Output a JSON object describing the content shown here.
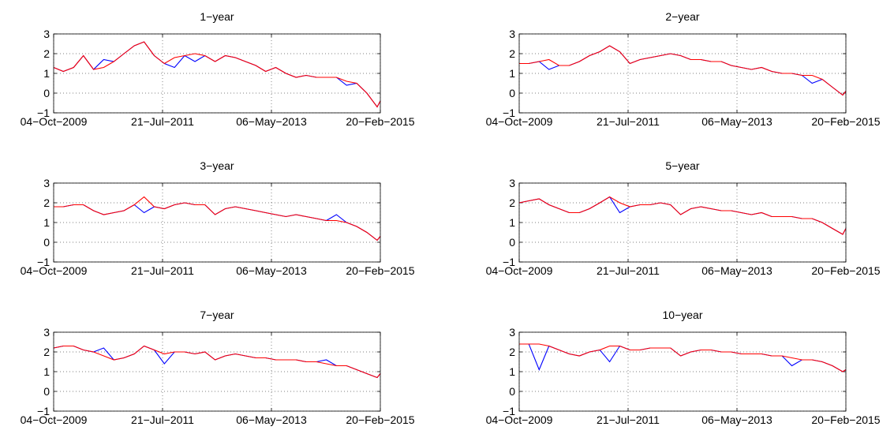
{
  "chart_data": [
    {
      "type": "line",
      "title": "1−year",
      "x": [
        "2009-10-04",
        "2009-12-01",
        "2010-02-01",
        "2010-04-01",
        "2010-06-01",
        "2010-08-01",
        "2010-10-01",
        "2010-12-01",
        "2011-02-01",
        "2011-04-01",
        "2011-06-01",
        "2011-08-01",
        "2011-10-01",
        "2011-12-01",
        "2012-02-01",
        "2012-04-01",
        "2012-06-01",
        "2012-08-01",
        "2012-10-01",
        "2012-12-01",
        "2013-02-01",
        "2013-04-01",
        "2013-06-01",
        "2013-08-01",
        "2013-10-01",
        "2013-12-01",
        "2014-02-01",
        "2014-04-01",
        "2014-06-01",
        "2014-08-01",
        "2014-10-01",
        "2014-12-01",
        "2015-02-01",
        "2015-02-20"
      ],
      "series": [
        {
          "color": "#0000ff",
          "values": [
            1.3,
            1.1,
            1.3,
            1.9,
            1.2,
            1.7,
            1.6,
            2.0,
            2.4,
            2.6,
            1.9,
            1.5,
            1.3,
            1.9,
            1.6,
            1.9,
            1.6,
            1.9,
            1.8,
            1.6,
            1.4,
            1.1,
            1.3,
            1.0,
            0.8,
            0.9,
            0.8,
            0.8,
            0.8,
            0.4,
            0.5,
            0.0,
            -0.7,
            -0.4
          ]
        },
        {
          "color": "#ff0000",
          "values": [
            1.3,
            1.1,
            1.3,
            1.9,
            1.2,
            1.3,
            1.6,
            2.0,
            2.4,
            2.6,
            1.9,
            1.5,
            1.8,
            1.9,
            2.0,
            1.9,
            1.6,
            1.9,
            1.8,
            1.6,
            1.4,
            1.1,
            1.3,
            1.0,
            0.8,
            0.9,
            0.8,
            0.8,
            0.8,
            0.6,
            0.5,
            0.0,
            -0.7,
            -0.4
          ]
        }
      ],
      "xlim": [
        "2009-10-04",
        "2015-02-20"
      ],
      "xticks": [
        {
          "value": "2009-10-04",
          "label": "04−Oct−2009"
        },
        {
          "value": "2011-07-21",
          "label": "21−Jul−2011"
        },
        {
          "value": "2013-05-06",
          "label": "06−May−2013"
        },
        {
          "value": "2015-02-20",
          "label": "20−Feb−2015"
        }
      ],
      "ylim": [
        -1,
        3
      ],
      "yticks": [
        {
          "value": -1,
          "label": "−1"
        },
        0,
        1,
        2,
        3
      ],
      "grid": true
    },
    {
      "type": "line",
      "title": "2−year",
      "x": [
        "2009-10-04",
        "2009-12-01",
        "2010-02-01",
        "2010-04-01",
        "2010-06-01",
        "2010-08-01",
        "2010-10-01",
        "2010-12-01",
        "2011-02-01",
        "2011-04-01",
        "2011-06-01",
        "2011-08-01",
        "2011-10-01",
        "2011-12-01",
        "2012-02-01",
        "2012-04-01",
        "2012-06-01",
        "2012-08-01",
        "2012-10-01",
        "2012-12-01",
        "2013-02-01",
        "2013-04-01",
        "2013-06-01",
        "2013-08-01",
        "2013-10-01",
        "2013-12-01",
        "2014-02-01",
        "2014-04-01",
        "2014-06-01",
        "2014-08-01",
        "2014-10-01",
        "2014-12-01",
        "2015-02-01",
        "2015-02-20"
      ],
      "series": [
        {
          "color": "#0000ff",
          "values": [
            1.5,
            1.5,
            1.6,
            1.2,
            1.4,
            1.4,
            1.6,
            1.9,
            2.1,
            2.4,
            2.1,
            1.5,
            1.7,
            1.8,
            1.9,
            2.0,
            1.9,
            1.7,
            1.7,
            1.6,
            1.6,
            1.4,
            1.3,
            1.2,
            1.3,
            1.1,
            1.0,
            1.0,
            0.9,
            0.5,
            0.7,
            0.3,
            -0.1,
            0.1
          ]
        },
        {
          "color": "#ff0000",
          "values": [
            1.5,
            1.5,
            1.6,
            1.7,
            1.4,
            1.4,
            1.6,
            1.9,
            2.1,
            2.4,
            2.1,
            1.5,
            1.7,
            1.8,
            1.9,
            2.0,
            1.9,
            1.7,
            1.7,
            1.6,
            1.6,
            1.4,
            1.3,
            1.2,
            1.3,
            1.1,
            1.0,
            1.0,
            0.9,
            0.9,
            0.7,
            0.3,
            -0.1,
            0.1
          ]
        }
      ],
      "xlim": [
        "2009-10-04",
        "2015-02-20"
      ],
      "xticks": [
        {
          "value": "2009-10-04",
          "label": "04−Oct−2009"
        },
        {
          "value": "2011-07-21",
          "label": "21−Jul−2011"
        },
        {
          "value": "2013-05-06",
          "label": "06−May−2013"
        },
        {
          "value": "2015-02-20",
          "label": "20−Feb−2015"
        }
      ],
      "ylim": [
        -1,
        3
      ],
      "yticks": [
        {
          "value": -1,
          "label": "−1"
        },
        0,
        1,
        2,
        3
      ],
      "grid": true
    },
    {
      "type": "line",
      "title": "3−year",
      "x": [
        "2009-10-04",
        "2009-12-01",
        "2010-02-01",
        "2010-04-01",
        "2010-06-01",
        "2010-08-01",
        "2010-10-01",
        "2010-12-01",
        "2011-02-01",
        "2011-04-01",
        "2011-06-01",
        "2011-08-01",
        "2011-10-01",
        "2011-12-01",
        "2012-02-01",
        "2012-04-01",
        "2012-06-01",
        "2012-08-01",
        "2012-10-01",
        "2012-12-01",
        "2013-02-01",
        "2013-04-01",
        "2013-06-01",
        "2013-08-01",
        "2013-10-01",
        "2013-12-01",
        "2014-02-01",
        "2014-04-01",
        "2014-06-01",
        "2014-08-01",
        "2014-10-01",
        "2014-12-01",
        "2015-02-01",
        "2015-02-20"
      ],
      "series": [
        {
          "color": "#0000ff",
          "values": [
            1.8,
            1.8,
            1.9,
            1.9,
            1.6,
            1.4,
            1.5,
            1.6,
            1.9,
            1.5,
            1.8,
            1.7,
            1.9,
            2.0,
            1.9,
            1.9,
            1.4,
            1.7,
            1.8,
            1.7,
            1.6,
            1.5,
            1.4,
            1.3,
            1.4,
            1.3,
            1.2,
            1.1,
            1.4,
            1.0,
            0.8,
            0.5,
            0.1,
            0.3
          ]
        },
        {
          "color": "#ff0000",
          "values": [
            1.8,
            1.8,
            1.9,
            1.9,
            1.6,
            1.4,
            1.5,
            1.6,
            1.9,
            2.3,
            1.8,
            1.7,
            1.9,
            2.0,
            1.9,
            1.9,
            1.4,
            1.7,
            1.8,
            1.7,
            1.6,
            1.5,
            1.4,
            1.3,
            1.4,
            1.3,
            1.2,
            1.1,
            1.1,
            1.0,
            0.8,
            0.5,
            0.1,
            0.3
          ]
        }
      ],
      "xlim": [
        "2009-10-04",
        "2015-02-20"
      ],
      "xticks": [
        {
          "value": "2009-10-04",
          "label": "04−Oct−2009"
        },
        {
          "value": "2011-07-21",
          "label": "21−Jul−2011"
        },
        {
          "value": "2013-05-06",
          "label": "06−May−2013"
        },
        {
          "value": "2015-02-20",
          "label": "20−Feb−2015"
        }
      ],
      "ylim": [
        -1,
        3
      ],
      "yticks": [
        {
          "value": -1,
          "label": "−1"
        },
        0,
        1,
        2,
        3
      ],
      "grid": true
    },
    {
      "type": "line",
      "title": "5−year",
      "x": [
        "2009-10-04",
        "2009-12-01",
        "2010-02-01",
        "2010-04-01",
        "2010-06-01",
        "2010-08-01",
        "2010-10-01",
        "2010-12-01",
        "2011-02-01",
        "2011-04-01",
        "2011-06-01",
        "2011-08-01",
        "2011-10-01",
        "2011-12-01",
        "2012-02-01",
        "2012-04-01",
        "2012-06-01",
        "2012-08-01",
        "2012-10-01",
        "2012-12-01",
        "2013-02-01",
        "2013-04-01",
        "2013-06-01",
        "2013-08-01",
        "2013-10-01",
        "2013-12-01",
        "2014-02-01",
        "2014-04-01",
        "2014-06-01",
        "2014-08-01",
        "2014-10-01",
        "2014-12-01",
        "2015-02-01",
        "2015-02-20"
      ],
      "series": [
        {
          "color": "#0000ff",
          "values": [
            2.0,
            2.1,
            2.2,
            1.9,
            1.7,
            1.5,
            1.5,
            1.7,
            2.0,
            2.3,
            1.5,
            1.8,
            1.9,
            1.9,
            2.0,
            1.9,
            1.4,
            1.7,
            1.8,
            1.7,
            1.6,
            1.6,
            1.5,
            1.4,
            1.5,
            1.3,
            1.3,
            1.3,
            1.2,
            1.2,
            1.0,
            0.7,
            0.4,
            0.7
          ]
        },
        {
          "color": "#ff0000",
          "values": [
            2.0,
            2.1,
            2.2,
            1.9,
            1.7,
            1.5,
            1.5,
            1.7,
            2.0,
            2.3,
            2.0,
            1.8,
            1.9,
            1.9,
            2.0,
            1.9,
            1.4,
            1.7,
            1.8,
            1.7,
            1.6,
            1.6,
            1.5,
            1.4,
            1.5,
            1.3,
            1.3,
            1.3,
            1.2,
            1.2,
            1.0,
            0.7,
            0.4,
            0.7
          ]
        }
      ],
      "xlim": [
        "2009-10-04",
        "2015-02-20"
      ],
      "xticks": [
        {
          "value": "2009-10-04",
          "label": "04−Oct−2009"
        },
        {
          "value": "2011-07-21",
          "label": "21−Jul−2011"
        },
        {
          "value": "2013-05-06",
          "label": "06−May−2013"
        },
        {
          "value": "2015-02-20",
          "label": "20−Feb−2015"
        }
      ],
      "ylim": [
        -1,
        3
      ],
      "yticks": [
        {
          "value": -1,
          "label": "−1"
        },
        0,
        1,
        2,
        3
      ],
      "grid": true
    },
    {
      "type": "line",
      "title": "7−year",
      "x": [
        "2009-10-04",
        "2009-12-01",
        "2010-02-01",
        "2010-04-01",
        "2010-06-01",
        "2010-08-01",
        "2010-10-01",
        "2010-12-01",
        "2011-02-01",
        "2011-04-01",
        "2011-06-01",
        "2011-08-01",
        "2011-10-01",
        "2011-12-01",
        "2012-02-01",
        "2012-04-01",
        "2012-06-01",
        "2012-08-01",
        "2012-10-01",
        "2012-12-01",
        "2013-02-01",
        "2013-04-01",
        "2013-06-01",
        "2013-08-01",
        "2013-10-01",
        "2013-12-01",
        "2014-02-01",
        "2014-04-01",
        "2014-06-01",
        "2014-08-01",
        "2014-10-01",
        "2014-12-01",
        "2015-02-01",
        "2015-02-20"
      ],
      "series": [
        {
          "color": "#0000ff",
          "values": [
            2.2,
            2.3,
            2.3,
            2.1,
            2.0,
            2.2,
            1.6,
            1.7,
            1.9,
            2.3,
            2.1,
            1.4,
            2.0,
            2.0,
            1.9,
            2.0,
            1.6,
            1.8,
            1.9,
            1.8,
            1.7,
            1.7,
            1.6,
            1.6,
            1.6,
            1.5,
            1.5,
            1.6,
            1.3,
            1.3,
            1.1,
            0.9,
            0.7,
            0.9
          ]
        },
        {
          "color": "#ff0000",
          "values": [
            2.2,
            2.3,
            2.3,
            2.1,
            2.0,
            1.8,
            1.6,
            1.7,
            1.9,
            2.3,
            2.1,
            1.9,
            2.0,
            2.0,
            1.9,
            2.0,
            1.6,
            1.8,
            1.9,
            1.8,
            1.7,
            1.7,
            1.6,
            1.6,
            1.6,
            1.5,
            1.5,
            1.4,
            1.3,
            1.3,
            1.1,
            0.9,
            0.7,
            0.9
          ]
        }
      ],
      "xlim": [
        "2009-10-04",
        "2015-02-20"
      ],
      "xticks": [
        {
          "value": "2009-10-04",
          "label": "04−Oct−2009"
        },
        {
          "value": "2011-07-21",
          "label": "21−Jul−2011"
        },
        {
          "value": "2013-05-06",
          "label": "06−May−2013"
        },
        {
          "value": "2015-02-20",
          "label": "20−Feb−2015"
        }
      ],
      "ylim": [
        -1,
        3
      ],
      "yticks": [
        {
          "value": -1,
          "label": "−1"
        },
        0,
        1,
        2,
        3
      ],
      "grid": true
    },
    {
      "type": "line",
      "title": "10−year",
      "x": [
        "2009-10-04",
        "2009-12-01",
        "2010-02-01",
        "2010-04-01",
        "2010-06-01",
        "2010-08-01",
        "2010-10-01",
        "2010-12-01",
        "2011-02-01",
        "2011-04-01",
        "2011-06-01",
        "2011-08-01",
        "2011-10-01",
        "2011-12-01",
        "2012-02-01",
        "2012-04-01",
        "2012-06-01",
        "2012-08-01",
        "2012-10-01",
        "2012-12-01",
        "2013-02-01",
        "2013-04-01",
        "2013-06-01",
        "2013-08-01",
        "2013-10-01",
        "2013-12-01",
        "2014-02-01",
        "2014-04-01",
        "2014-06-01",
        "2014-08-01",
        "2014-10-01",
        "2014-12-01",
        "2015-02-01",
        "2015-02-20"
      ],
      "series": [
        {
          "color": "#0000ff",
          "values": [
            2.4,
            2.4,
            1.1,
            2.3,
            2.1,
            1.9,
            1.8,
            2.0,
            2.1,
            1.5,
            2.3,
            2.1,
            2.1,
            2.2,
            2.2,
            2.2,
            1.8,
            2.0,
            2.1,
            2.1,
            2.0,
            2.0,
            1.9,
            1.9,
            1.9,
            1.8,
            1.8,
            1.3,
            1.6,
            1.6,
            1.5,
            1.3,
            1.0,
            1.1
          ]
        },
        {
          "color": "#ff0000",
          "values": [
            2.4,
            2.4,
            2.4,
            2.3,
            2.1,
            1.9,
            1.8,
            2.0,
            2.1,
            2.3,
            2.3,
            2.1,
            2.1,
            2.2,
            2.2,
            2.2,
            1.8,
            2.0,
            2.1,
            2.1,
            2.0,
            2.0,
            1.9,
            1.9,
            1.9,
            1.8,
            1.8,
            1.7,
            1.6,
            1.6,
            1.5,
            1.3,
            1.0,
            1.1
          ]
        }
      ],
      "xlim": [
        "2009-10-04",
        "2015-02-20"
      ],
      "xticks": [
        {
          "value": "2009-10-04",
          "label": "04−Oct−2009"
        },
        {
          "value": "2011-07-21",
          "label": "21−Jul−2011"
        },
        {
          "value": "2013-05-06",
          "label": "06−May−2013"
        },
        {
          "value": "2015-02-20",
          "label": "20−Feb−2015"
        }
      ],
      "ylim": [
        -1,
        3
      ],
      "yticks": [
        {
          "value": -1,
          "label": "−1"
        },
        0,
        1,
        2,
        3
      ],
      "grid": true
    }
  ]
}
